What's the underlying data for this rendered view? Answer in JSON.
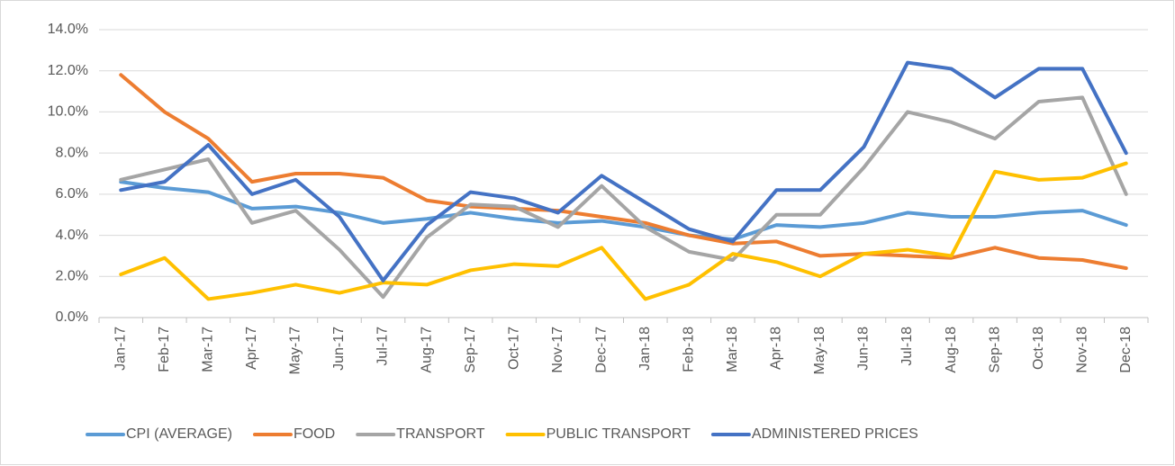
{
  "chart_data": {
    "type": "line",
    "categories": [
      "Jan-17",
      "Feb-17",
      "Mar-17",
      "Apr-17",
      "May-17",
      "Jun-17",
      "Jul-17",
      "Aug-17",
      "Sep-17",
      "Oct-17",
      "Nov-17",
      "Dec-17",
      "Jan-18",
      "Feb-18",
      "Mar-18",
      "Apr-18",
      "May-18",
      "Jun-18",
      "Jul-18",
      "Aug-18",
      "Sep-18",
      "Oct-18",
      "Nov-18",
      "Dec-18"
    ],
    "series": [
      {
        "name": "CPI (AVERAGE)",
        "color": "#5b9bd5",
        "values": [
          6.6,
          6.3,
          6.1,
          5.3,
          5.4,
          5.1,
          4.6,
          4.8,
          5.1,
          4.8,
          4.6,
          4.7,
          4.4,
          4.0,
          3.8,
          4.5,
          4.4,
          4.6,
          5.1,
          4.9,
          4.9,
          5.1,
          5.2,
          4.5
        ]
      },
      {
        "name": "FOOD",
        "color": "#ed7d31",
        "values": [
          11.8,
          10.0,
          8.7,
          6.6,
          7.0,
          7.0,
          6.8,
          5.7,
          5.4,
          5.3,
          5.2,
          4.9,
          4.6,
          4.0,
          3.6,
          3.7,
          3.0,
          3.1,
          3.0,
          2.9,
          3.4,
          2.9,
          2.8,
          2.4
        ]
      },
      {
        "name": "TRANSPORT",
        "color": "#a5a5a5",
        "values": [
          6.7,
          7.2,
          7.7,
          4.6,
          5.2,
          3.3,
          1.0,
          3.9,
          5.5,
          5.4,
          4.4,
          6.4,
          4.4,
          3.2,
          2.8,
          5.0,
          5.0,
          7.3,
          10.0,
          9.5,
          8.7,
          10.5,
          10.7,
          6.0
        ]
      },
      {
        "name": "PUBLIC TRANSPORT",
        "color": "#ffc000",
        "values": [
          2.1,
          2.9,
          0.9,
          1.2,
          1.6,
          1.2,
          1.7,
          1.6,
          2.3,
          2.6,
          2.5,
          3.4,
          0.9,
          1.6,
          3.1,
          2.7,
          2.0,
          3.1,
          3.3,
          3.0,
          7.1,
          6.7,
          6.8,
          7.5
        ]
      },
      {
        "name": "ADMINISTERED PRICES",
        "color": "#4472c4",
        "values": [
          6.2,
          6.6,
          8.4,
          6.0,
          6.7,
          4.9,
          1.8,
          4.5,
          6.1,
          5.8,
          5.1,
          6.9,
          5.6,
          4.3,
          3.7,
          6.2,
          6.2,
          8.3,
          12.4,
          12.1,
          10.7,
          12.1,
          12.1,
          8.0
        ]
      }
    ],
    "ylim": [
      0,
      14
    ],
    "yticks": [
      {
        "value": 0,
        "label": "0.0%"
      },
      {
        "value": 2,
        "label": "2.0%"
      },
      {
        "value": 4,
        "label": "4.0%"
      },
      {
        "value": 6,
        "label": "6.0%"
      },
      {
        "value": 8,
        "label": "8.0%"
      },
      {
        "value": 10,
        "label": "10.0%"
      },
      {
        "value": 12,
        "label": "12.0%"
      },
      {
        "value": 14,
        "label": "14.0%"
      }
    ],
    "grid": true,
    "legend": "bottom"
  }
}
